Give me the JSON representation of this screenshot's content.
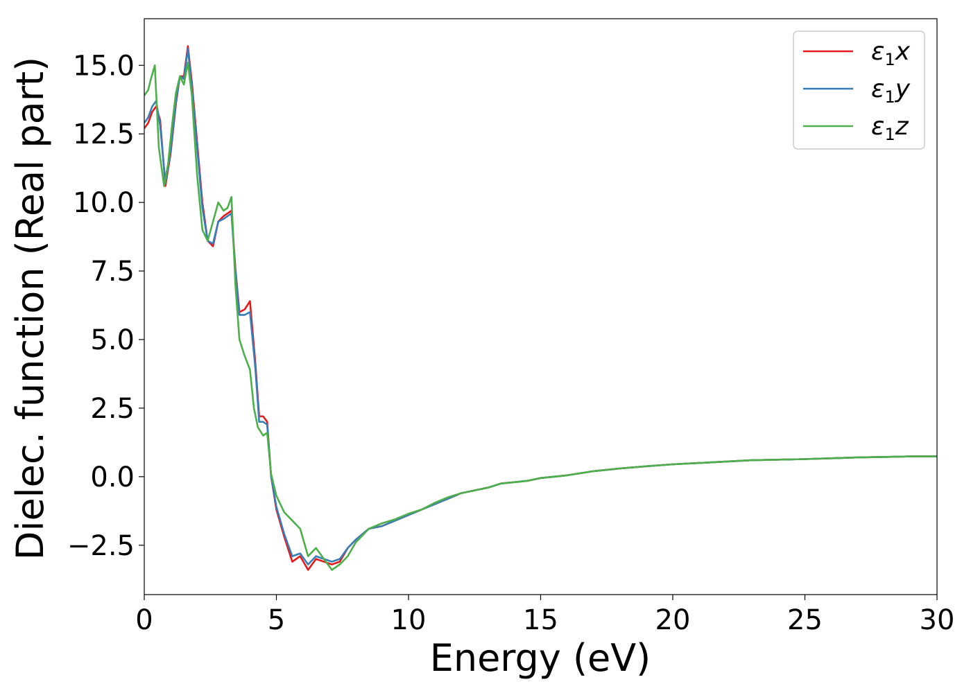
{
  "chart_data": {
    "type": "line",
    "title": "",
    "xlabel": "Energy (eV)",
    "ylabel": "Dielec. function (Real part)",
    "xlim": [
      0,
      30
    ],
    "ylim": [
      -4.3,
      16.7
    ],
    "x_ticks": [
      0,
      5,
      10,
      15,
      20,
      25,
      30
    ],
    "x_tick_labels": [
      "0",
      "5",
      "10",
      "15",
      "20",
      "25",
      "30"
    ],
    "y_ticks": [
      -2.5,
      0.0,
      2.5,
      5.0,
      7.5,
      10.0,
      12.5,
      15.0
    ],
    "y_tick_labels": [
      "−2.5",
      "0.0",
      "2.5",
      "5.0",
      "7.5",
      "10.0",
      "12.5",
      "15.0"
    ],
    "grid": false,
    "legend_position": "top-right",
    "series": [
      {
        "name": "ε1x",
        "legend_main": "ε",
        "legend_sub": "1",
        "legend_tail": "x",
        "color": "#e41a1c",
        "x": [
          0,
          0.15,
          0.3,
          0.45,
          0.6,
          0.8,
          1.0,
          1.2,
          1.35,
          1.5,
          1.65,
          1.8,
          2.0,
          2.2,
          2.4,
          2.6,
          2.8,
          3.0,
          3.15,
          3.3,
          3.45,
          3.6,
          3.8,
          4.0,
          4.2,
          4.35,
          4.5,
          4.65,
          4.8,
          5.0,
          5.3,
          5.6,
          5.9,
          6.2,
          6.5,
          6.8,
          7.1,
          7.4,
          7.7,
          8.0,
          8.5,
          9.0,
          9.5,
          10.0,
          10.5,
          11.0,
          11.5,
          12.0,
          12.5,
          13.0,
          13.5,
          14.0,
          14.5,
          15.0,
          16.0,
          17.0,
          18.0,
          19.0,
          20.0,
          21.0,
          22.0,
          23.0,
          24.0,
          25.0,
          26.0,
          27.0,
          28.0,
          29.0,
          30.0
        ],
        "y": [
          12.7,
          12.9,
          13.3,
          13.5,
          13.0,
          10.6,
          11.8,
          13.6,
          14.6,
          14.6,
          15.7,
          14.4,
          12.2,
          10.0,
          8.6,
          8.4,
          9.3,
          9.5,
          9.6,
          9.7,
          7.6,
          6.0,
          6.1,
          6.4,
          4.2,
          2.2,
          2.2,
          2.0,
          0.0,
          -1.2,
          -2.2,
          -3.1,
          -2.9,
          -3.4,
          -3.0,
          -3.1,
          -3.2,
          -3.1,
          -2.6,
          -2.3,
          -1.9,
          -1.8,
          -1.6,
          -1.4,
          -1.2,
          -1.0,
          -0.8,
          -0.6,
          -0.5,
          -0.4,
          -0.25,
          -0.2,
          -0.15,
          -0.05,
          0.05,
          0.2,
          0.3,
          0.38,
          0.45,
          0.5,
          0.55,
          0.6,
          0.62,
          0.64,
          0.67,
          0.7,
          0.72,
          0.74,
          0.74
        ]
      },
      {
        "name": "ε1y",
        "legend_main": "ε",
        "legend_sub": "1",
        "legend_tail": "y",
        "color": "#377eb8",
        "x": [
          0,
          0.15,
          0.3,
          0.45,
          0.6,
          0.8,
          1.0,
          1.2,
          1.35,
          1.5,
          1.65,
          1.8,
          2.0,
          2.2,
          2.4,
          2.6,
          2.8,
          3.0,
          3.15,
          3.3,
          3.45,
          3.6,
          3.8,
          4.0,
          4.2,
          4.35,
          4.5,
          4.65,
          4.8,
          5.0,
          5.3,
          5.6,
          5.9,
          6.2,
          6.5,
          6.8,
          7.1,
          7.4,
          7.7,
          8.0,
          8.5,
          9.0,
          9.5,
          10.0,
          10.5,
          11.0,
          11.5,
          12.0,
          12.5,
          13.0,
          13.5,
          14.0,
          14.5,
          15.0,
          16.0,
          17.0,
          18.0,
          19.0,
          20.0,
          21.0,
          22.0,
          23.0,
          24.0,
          25.0,
          26.0,
          27.0,
          28.0,
          29.0,
          30.0
        ],
        "y": [
          12.9,
          13.1,
          13.5,
          13.7,
          12.8,
          10.7,
          11.9,
          13.7,
          14.6,
          14.5,
          15.6,
          14.2,
          12.0,
          9.8,
          8.6,
          8.5,
          9.3,
          9.4,
          9.5,
          9.6,
          7.5,
          5.9,
          5.9,
          6.0,
          4.0,
          2.0,
          2.0,
          1.9,
          0.0,
          -1.1,
          -2.1,
          -2.9,
          -2.8,
          -3.2,
          -2.9,
          -3.0,
          -3.1,
          -3.0,
          -2.6,
          -2.3,
          -1.9,
          -1.8,
          -1.6,
          -1.4,
          -1.2,
          -1.0,
          -0.8,
          -0.6,
          -0.5,
          -0.4,
          -0.25,
          -0.2,
          -0.15,
          -0.05,
          0.05,
          0.2,
          0.3,
          0.38,
          0.45,
          0.5,
          0.55,
          0.6,
          0.62,
          0.64,
          0.67,
          0.7,
          0.72,
          0.74,
          0.74
        ]
      },
      {
        "name": "ε1z",
        "legend_main": "ε",
        "legend_sub": "1",
        "legend_tail": "z",
        "color": "#4daf4a",
        "x": [
          0,
          0.15,
          0.25,
          0.4,
          0.55,
          0.75,
          0.9,
          1.05,
          1.2,
          1.35,
          1.5,
          1.65,
          1.8,
          2.0,
          2.2,
          2.4,
          2.6,
          2.8,
          3.0,
          3.15,
          3.3,
          3.45,
          3.6,
          3.8,
          4.0,
          4.15,
          4.3,
          4.5,
          4.65,
          4.8,
          5.0,
          5.3,
          5.6,
          5.9,
          6.2,
          6.5,
          6.8,
          7.1,
          7.4,
          7.7,
          8.0,
          8.5,
          9.0,
          9.5,
          10.0,
          10.5,
          11.0,
          11.5,
          12.0,
          12.5,
          13.0,
          13.5,
          14.0,
          14.5,
          15.0,
          16.0,
          17.0,
          18.0,
          19.0,
          20.0,
          21.0,
          22.0,
          23.0,
          24.0,
          25.0,
          26.0,
          27.0,
          28.0,
          29.0,
          30.0
        ],
        "y": [
          13.9,
          14.1,
          14.5,
          15.0,
          12.0,
          10.6,
          11.4,
          12.8,
          14.0,
          14.6,
          14.3,
          15.1,
          13.9,
          11.0,
          9.0,
          8.6,
          9.3,
          10.0,
          9.7,
          9.8,
          10.2,
          7.0,
          5.0,
          4.4,
          3.9,
          2.5,
          1.8,
          1.5,
          1.6,
          0.1,
          -0.7,
          -1.3,
          -1.6,
          -1.9,
          -2.9,
          -2.6,
          -3.0,
          -3.4,
          -3.2,
          -2.9,
          -2.4,
          -1.9,
          -1.7,
          -1.55,
          -1.35,
          -1.2,
          -0.95,
          -0.75,
          -0.6,
          -0.5,
          -0.4,
          -0.25,
          -0.2,
          -0.15,
          -0.05,
          0.05,
          0.2,
          0.3,
          0.38,
          0.45,
          0.5,
          0.55,
          0.6,
          0.62,
          0.64,
          0.67,
          0.7,
          0.72,
          0.74,
          0.74
        ]
      }
    ]
  }
}
